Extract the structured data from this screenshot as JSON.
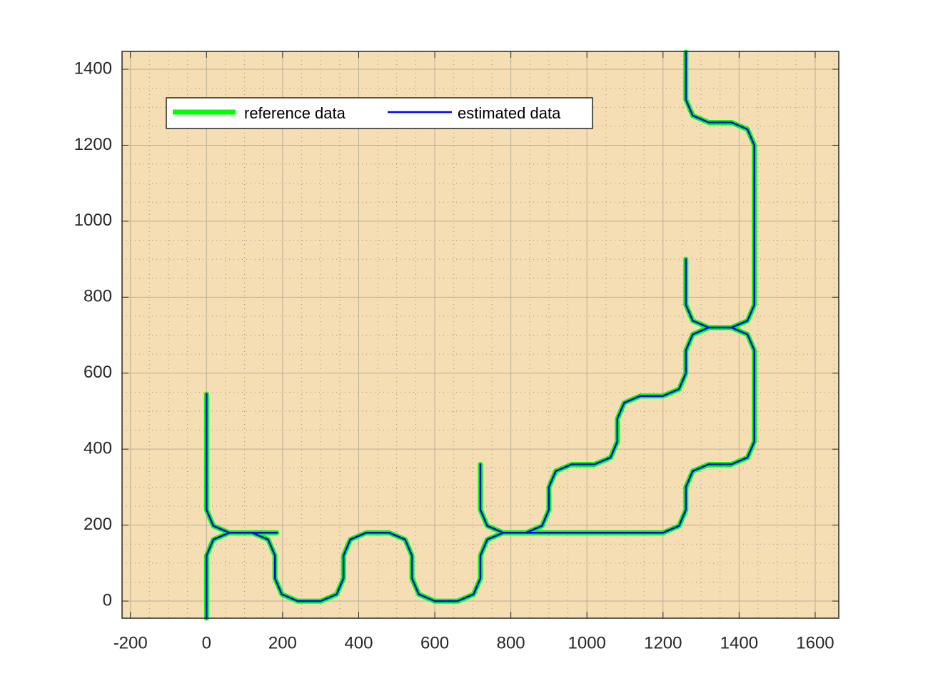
{
  "chart_data": {
    "type": "line",
    "x": [
      0,
      0,
      18,
      60,
      120,
      162,
      180,
      180,
      198,
      240,
      300,
      342,
      360,
      360,
      378,
      420,
      480,
      522,
      540,
      540,
      558,
      600,
      660,
      702,
      720,
      720,
      738,
      780,
      1200,
      1242,
      1260,
      1260,
      1278,
      1320,
      1380,
      1422,
      1440,
      1440,
      1422,
      1380,
      1320,
      1278,
      1260,
      1260,
      null,
      0,
      0,
      18,
      60,
      185,
      null,
      720,
      720,
      738,
      780,
      840,
      882,
      900,
      900,
      918,
      960,
      1020,
      1062,
      1080,
      1080,
      1098,
      1140,
      1200,
      1242,
      1260,
      1260,
      1278,
      1320,
      1380,
      1422,
      1440,
      1440,
      1422,
      1380,
      1320,
      1278,
      1260,
      1260
    ],
    "series": [
      {
        "name": "reference data",
        "color": "#00ff00",
        "values": [
          -45,
          120,
          162,
          180,
          180,
          162,
          120,
          60,
          18,
          0,
          0,
          18,
          60,
          120,
          162,
          180,
          180,
          162,
          120,
          60,
          18,
          0,
          0,
          18,
          60,
          120,
          162,
          180,
          180,
          198,
          240,
          300,
          342,
          360,
          360,
          378,
          420,
          660,
          702,
          720,
          720,
          738,
          780,
          900,
          null,
          545,
          240,
          198,
          180,
          180,
          null,
          360,
          240,
          198,
          180,
          180,
          198,
          240,
          300,
          342,
          360,
          360,
          378,
          420,
          480,
          522,
          540,
          540,
          558,
          600,
          660,
          702,
          720,
          720,
          738,
          780,
          1200,
          1242,
          1260,
          1260,
          1278,
          1320,
          1445
        ]
      },
      {
        "name": "estimated data",
        "color": "#0000ff",
        "values": [
          -45,
          120,
          162,
          180,
          180,
          162,
          120,
          60,
          18,
          0,
          0,
          18,
          60,
          120,
          162,
          180,
          180,
          162,
          120,
          60,
          18,
          0,
          0,
          18,
          60,
          120,
          162,
          180,
          180,
          198,
          240,
          300,
          342,
          360,
          360,
          378,
          420,
          660,
          702,
          720,
          720,
          738,
          780,
          900,
          null,
          545,
          240,
          198,
          180,
          180,
          null,
          360,
          240,
          198,
          180,
          180,
          198,
          240,
          300,
          342,
          360,
          360,
          378,
          420,
          480,
          522,
          540,
          540,
          558,
          600,
          660,
          702,
          720,
          720,
          738,
          780,
          1200,
          1242,
          1260,
          1260,
          1278,
          1320,
          1445
        ]
      }
    ],
    "xlim": [
      -222,
      1662
    ],
    "ylim": [
      -45,
      1447
    ],
    "xticks": [
      -200,
      0,
      200,
      400,
      600,
      800,
      1000,
      1200,
      1400,
      1600
    ],
    "yticks": [
      0,
      200,
      400,
      600,
      800,
      1000,
      1200,
      1400
    ],
    "grid": true,
    "minor_grid": true,
    "legend": "northwest",
    "background": "#f5deb3"
  }
}
